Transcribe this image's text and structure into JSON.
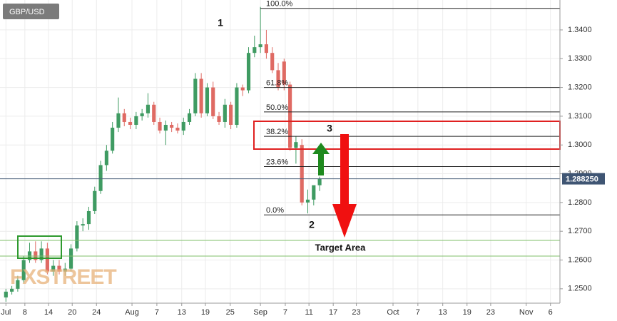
{
  "chart_data": {
    "type": "candlestick",
    "symbol": "GBP/USD",
    "watermark": "FXSTREET",
    "up_color": "#3f9b62",
    "down_color": "#df6a63",
    "grid": true,
    "x": [
      1,
      2,
      3,
      4,
      5,
      6,
      7,
      8,
      9,
      10,
      11,
      12,
      13,
      14,
      15,
      16,
      17,
      18,
      19,
      20,
      21,
      22,
      23,
      24,
      25,
      26,
      27,
      28,
      29,
      30,
      31,
      32,
      33,
      34,
      35,
      36,
      37,
      38,
      39,
      40,
      41,
      42,
      43,
      44,
      45,
      46,
      47,
      48,
      49,
      50,
      51,
      52,
      53,
      54
    ],
    "open": [
      1.247,
      1.249,
      1.25,
      1.253,
      1.26,
      1.263,
      1.26,
      1.264,
      1.256,
      1.258,
      1.256,
      1.257,
      1.264,
      1.272,
      1.2725,
      1.277,
      1.284,
      1.293,
      1.298,
      1.306,
      1.311,
      1.308,
      1.307,
      1.31,
      1.311,
      1.314,
      1.308,
      1.305,
      1.307,
      1.306,
      1.305,
      1.308,
      1.311,
      1.323,
      1.311,
      1.32,
      1.31,
      1.308,
      1.314,
      1.307,
      1.32,
      1.319,
      1.332,
      1.334,
      1.335,
      1.332,
      1.326,
      1.329,
      1.321,
      1.299,
      1.3,
      1.28,
      1.281,
      1.286
    ],
    "high": [
      1.25,
      1.251,
      1.2545,
      1.2615,
      1.266,
      1.2665,
      1.2665,
      1.266,
      1.26,
      1.26,
      1.259,
      1.2655,
      1.2735,
      1.2745,
      1.2785,
      1.2855,
      1.2945,
      1.3,
      1.308,
      1.3165,
      1.3125,
      1.3095,
      1.3115,
      1.3125,
      1.318,
      1.315,
      1.3095,
      1.3085,
      1.308,
      1.3075,
      1.3095,
      1.3125,
      1.325,
      1.325,
      1.3215,
      1.322,
      1.3115,
      1.316,
      1.315,
      1.3215,
      1.321,
      1.334,
      1.338,
      1.348,
      1.34,
      1.334,
      1.3285,
      1.33,
      1.322,
      1.303,
      1.302,
      1.2845,
      1.285,
      1.289
    ],
    "low": [
      1.2455,
      1.248,
      1.249,
      1.252,
      1.259,
      1.259,
      1.259,
      1.255,
      1.2545,
      1.255,
      1.2545,
      1.256,
      1.263,
      1.27,
      1.2705,
      1.276,
      1.283,
      1.291,
      1.297,
      1.3045,
      1.3065,
      1.3055,
      1.3055,
      1.3085,
      1.3095,
      1.307,
      1.304,
      1.3,
      1.3045,
      1.304,
      1.3035,
      1.307,
      1.31,
      1.3095,
      1.31,
      1.309,
      1.307,
      1.306,
      1.3055,
      1.306,
      1.317,
      1.318,
      1.3305,
      1.332,
      1.33,
      1.325,
      1.319,
      1.319,
      1.298,
      1.2935,
      1.279,
      1.2762,
      1.279,
      1.284
    ],
    "close": [
      1.249,
      1.25,
      1.253,
      1.26,
      1.263,
      1.26,
      1.264,
      1.256,
      1.258,
      1.256,
      1.257,
      1.264,
      1.272,
      1.2725,
      1.277,
      1.284,
      1.293,
      1.298,
      1.306,
      1.311,
      1.308,
      1.307,
      1.31,
      1.311,
      1.314,
      1.308,
      1.305,
      1.307,
      1.306,
      1.305,
      1.308,
      1.311,
      1.323,
      1.311,
      1.32,
      1.31,
      1.308,
      1.314,
      1.307,
      1.32,
      1.319,
      1.332,
      1.334,
      1.335,
      1.332,
      1.326,
      1.32,
      1.321,
      1.299,
      1.301,
      1.28,
      1.281,
      1.286,
      1.2883
    ],
    "xlim": [
      0,
      94.6
    ],
    "xticks": [
      {
        "value": 1.0,
        "label": "Jul"
      },
      {
        "value": 4.2,
        "label": "8"
      },
      {
        "value": 8.2,
        "label": "14"
      },
      {
        "value": 12.2,
        "label": "20"
      },
      {
        "value": 16.3,
        "label": "24"
      },
      {
        "value": 22.3,
        "label": "Aug"
      },
      {
        "value": 26.5,
        "label": "7"
      },
      {
        "value": 30.7,
        "label": "13"
      },
      {
        "value": 34.7,
        "label": "19"
      },
      {
        "value": 38.9,
        "label": "25"
      },
      {
        "value": 44.0,
        "label": "Sep"
      },
      {
        "value": 48.2,
        "label": "7"
      },
      {
        "value": 52.2,
        "label": "11"
      },
      {
        "value": 56.3,
        "label": "17"
      },
      {
        "value": 60.2,
        "label": "23"
      },
      {
        "value": 66.4,
        "label": "Oct"
      },
      {
        "value": 70.6,
        "label": "7"
      },
      {
        "value": 74.8,
        "label": "13"
      },
      {
        "value": 78.9,
        "label": "19"
      },
      {
        "value": 82.9,
        "label": "23"
      },
      {
        "value": 88.9,
        "label": "Nov"
      },
      {
        "value": 93.0,
        "label": "6"
      }
    ],
    "ylim": [
      1.245,
      1.3504
    ],
    "yticks": [
      {
        "value": 1.25,
        "label": "1.2500"
      },
      {
        "value": 1.26,
        "label": "1.2600"
      },
      {
        "value": 1.27,
        "label": "1.2700"
      },
      {
        "value": 1.28,
        "label": "1.2800"
      },
      {
        "value": 1.29,
        "label": "1.2900"
      },
      {
        "value": 1.3,
        "label": "1.3000"
      },
      {
        "value": 1.31,
        "label": "1.3100"
      },
      {
        "value": 1.32,
        "label": "1.3200"
      },
      {
        "value": 1.33,
        "label": "1.3300"
      },
      {
        "value": 1.34,
        "label": "1.3400"
      }
    ],
    "last_price": {
      "value": 1.28825,
      "label": "1.288250"
    },
    "fib_levels": [
      {
        "label": "100.0%",
        "price": 1.3475
      },
      {
        "label": "61.8%",
        "price": 1.32
      },
      {
        "label": "50.0%",
        "price": 1.3115
      },
      {
        "label": "38.2%",
        "price": 1.303
      },
      {
        "label": "23.6%",
        "price": 1.2925
      },
      {
        "label": "0.0%",
        "price": 1.2757
      }
    ],
    "annotations": [
      "1",
      "2",
      "3",
      "Target Area"
    ]
  }
}
